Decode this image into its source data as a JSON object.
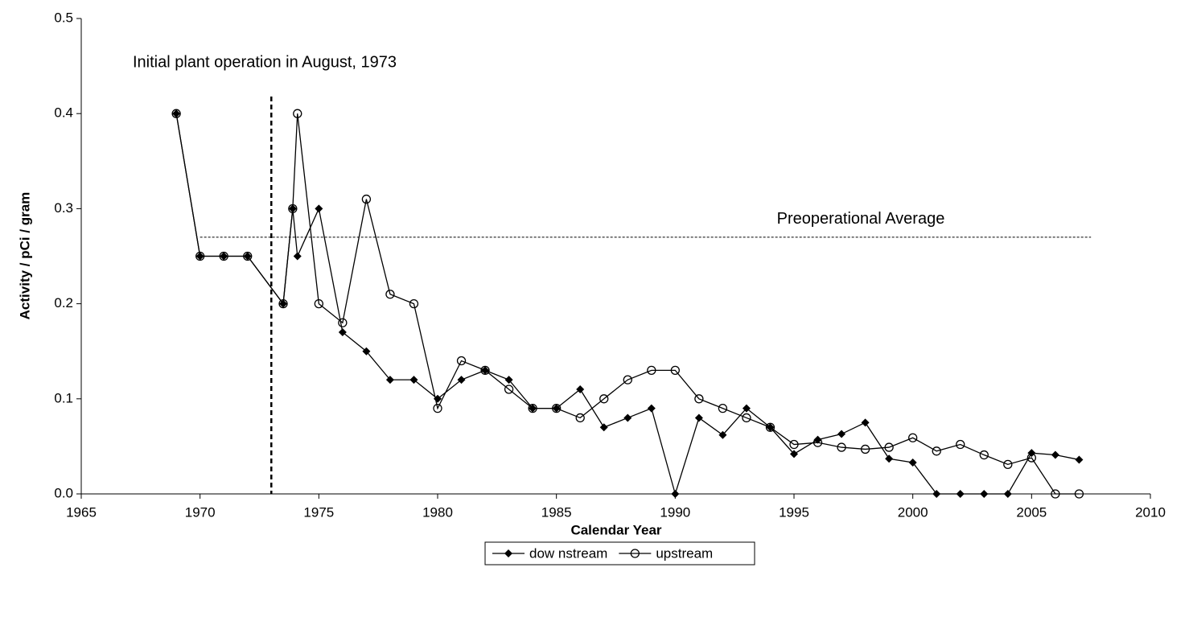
{
  "chart_data": {
    "type": "line",
    "xlabel": "Calendar Year",
    "ylabel": "Activity  /  pCi / gram",
    "annotation": "Initial plant operation in August, 1973",
    "vline": {
      "x": 1973
    },
    "hline": {
      "y": 0.27,
      "label": "Preoperational Average",
      "xrange": [
        1970,
        2007.5
      ]
    },
    "xlim": [
      1965,
      2010
    ],
    "xticks": [
      1965,
      1970,
      1975,
      1980,
      1985,
      1990,
      1995,
      2000,
      2005,
      2010
    ],
    "ylim": [
      0,
      0.5
    ],
    "yticks": [
      {
        "value": 0,
        "label": "0.0"
      },
      0.1,
      0.2,
      0.3,
      0.4,
      0.5
    ],
    "series": [
      {
        "name": "dow nstream",
        "color": "#000000",
        "marker": "diamond",
        "x": [
          1969,
          1970,
          1971,
          1972,
          1973.5,
          1973.9,
          1974.1,
          1975,
          1976,
          1977,
          1978,
          1979,
          1980,
          1981,
          1982,
          1983,
          1984,
          1985,
          1986,
          1987,
          1988,
          1989,
          1990,
          1991,
          1992,
          1993,
          1994,
          1995,
          1996,
          1997,
          1998,
          1999,
          2000,
          2001,
          2002,
          2003,
          2004,
          2005,
          2006,
          2007
        ],
        "values": [
          0.4,
          0.25,
          0.25,
          0.25,
          0.2,
          0.3,
          0.25,
          0.3,
          0.17,
          0.15,
          0.12,
          0.12,
          0.1,
          0.12,
          0.13,
          0.12,
          0.09,
          0.09,
          0.11,
          0.07,
          0.08,
          0.09,
          0.0,
          0.08,
          0.062,
          0.09,
          0.07,
          0.042,
          0.057,
          0.063,
          0.075,
          0.037,
          0.033,
          0.0,
          0.0,
          0.0,
          0.0,
          0.043,
          0.041,
          0.036
        ]
      },
      {
        "name": "upstream",
        "color": "#000000",
        "marker": "circle",
        "x": [
          1969,
          1970,
          1971,
          1972,
          1973.5,
          1973.9,
          1974.1,
          1975,
          1976,
          1977,
          1978,
          1979,
          1980,
          1981,
          1982,
          1983,
          1984,
          1985,
          1986,
          1987,
          1988,
          1989,
          1990,
          1991,
          1992,
          1993,
          1994,
          1995,
          1996,
          1997,
          1998,
          1999,
          2000,
          2001,
          2002,
          2003,
          2004,
          2005,
          2006,
          2007
        ],
        "values": [
          0.4,
          0.25,
          0.25,
          0.25,
          0.2,
          0.3,
          0.4,
          0.2,
          0.18,
          0.31,
          0.21,
          0.2,
          0.09,
          0.14,
          0.13,
          0.11,
          0.09,
          0.09,
          0.08,
          0.1,
          0.12,
          0.13,
          0.13,
          0.1,
          0.09,
          0.08,
          0.07,
          0.052,
          0.054,
          0.049,
          0.047,
          0.049,
          0.059,
          0.045,
          0.052,
          0.041,
          0.031,
          0.038,
          0.0,
          0.0
        ]
      }
    ]
  }
}
